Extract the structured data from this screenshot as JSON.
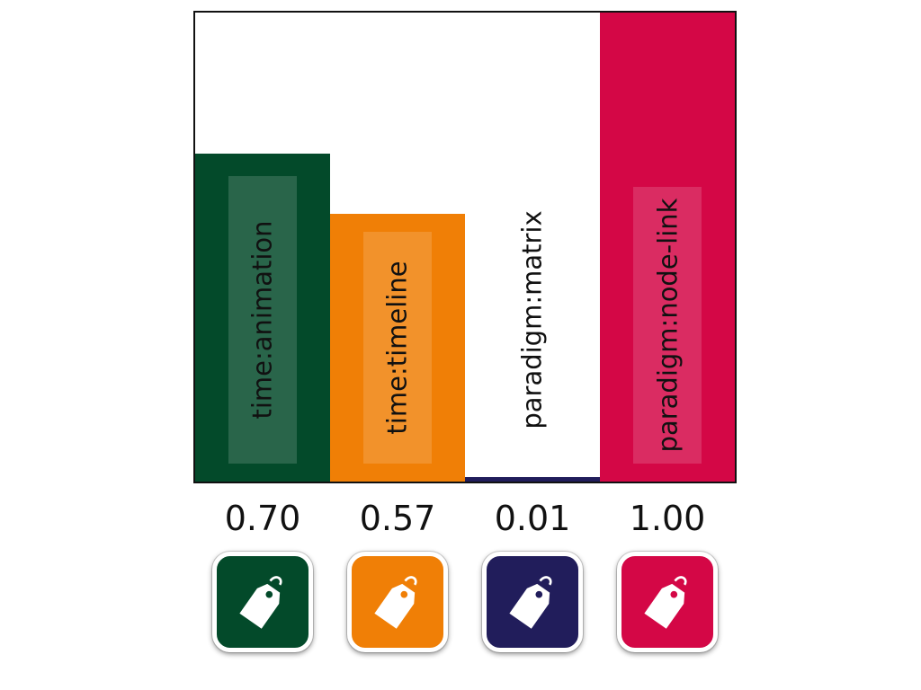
{
  "chart_data": {
    "type": "bar",
    "categories": [
      "time:animation",
      "time:timeline",
      "paradigm:matrix",
      "paradigm:node-link"
    ],
    "values": [
      0.7,
      0.57,
      0.01,
      1.0
    ],
    "value_labels": [
      "0.70",
      "0.57",
      "0.01",
      "1.00"
    ],
    "colors": [
      "#034a2a",
      "#f07f06",
      "#211d5b",
      "#d40746"
    ],
    "title": "",
    "xlabel": "",
    "ylabel": "",
    "ylim": [
      0,
      1.0
    ],
    "grid": false,
    "legend": "none"
  },
  "tag_buttons": [
    {
      "icon": "tag-icon",
      "color": "#034a2a"
    },
    {
      "icon": "tag-icon",
      "color": "#f07f06"
    },
    {
      "icon": "tag-icon",
      "color": "#211d5b"
    },
    {
      "icon": "tag-icon",
      "color": "#d40746"
    }
  ]
}
